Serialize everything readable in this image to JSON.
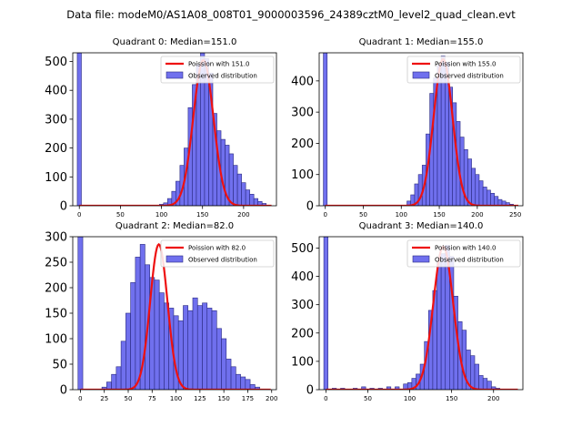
{
  "figure": {
    "suptitle": "Data file: modeM0/AS1A08_008T01_9000003596_24389cztM0_level2_quad_clean.evt"
  },
  "colors": {
    "bar_fill": "#7070ee",
    "bar_edge": "#2a2a80",
    "poisson_line": "#ee1111"
  },
  "chart_data": [
    {
      "type": "bar",
      "title": "Quadrant 0: Median=151.0",
      "xlim": [
        -8,
        240
      ],
      "ylim": [
        0,
        530
      ],
      "xticks": [
        0,
        50,
        100,
        150,
        200
      ],
      "yticks": [
        0,
        100,
        200,
        300,
        400,
        500
      ],
      "legend": [
        "Poission with 151.0",
        "Observed distribution"
      ],
      "bin_width": 5,
      "bars": [
        [
          0,
          530
        ],
        [
          100,
          5
        ],
        [
          105,
          10
        ],
        [
          110,
          25
        ],
        [
          115,
          50
        ],
        [
          120,
          85
        ],
        [
          125,
          140
        ],
        [
          130,
          200
        ],
        [
          135,
          340
        ],
        [
          140,
          420
        ],
        [
          145,
          490
        ],
        [
          150,
          530
        ],
        [
          155,
          510
        ],
        [
          160,
          460
        ],
        [
          165,
          320
        ],
        [
          170,
          260
        ],
        [
          175,
          230
        ],
        [
          180,
          210
        ],
        [
          185,
          180
        ],
        [
          190,
          140
        ],
        [
          195,
          110
        ],
        [
          200,
          80
        ],
        [
          205,
          55
        ],
        [
          210,
          40
        ],
        [
          215,
          25
        ],
        [
          220,
          15
        ],
        [
          225,
          8
        ]
      ],
      "poisson": {
        "mean": 151.0,
        "peak": 505
      }
    },
    {
      "type": "bar",
      "title": "Quadrant 1: Median=155.0",
      "xlim": [
        -8,
        260
      ],
      "ylim": [
        0,
        490
      ],
      "xticks": [
        0,
        50,
        100,
        150,
        200,
        250
      ],
      "yticks": [
        0,
        100,
        200,
        300,
        400
      ],
      "legend": [
        "Poission with 155.0",
        "Observed distribution"
      ],
      "bin_width": 5,
      "bars": [
        [
          0,
          490
        ],
        [
          110,
          15
        ],
        [
          115,
          35
        ],
        [
          120,
          70
        ],
        [
          125,
          100
        ],
        [
          130,
          130
        ],
        [
          135,
          230
        ],
        [
          140,
          360
        ],
        [
          145,
          410
        ],
        [
          150,
          450
        ],
        [
          155,
          480
        ],
        [
          160,
          460
        ],
        [
          165,
          380
        ],
        [
          170,
          330
        ],
        [
          175,
          270
        ],
        [
          180,
          220
        ],
        [
          185,
          180
        ],
        [
          190,
          150
        ],
        [
          195,
          120
        ],
        [
          200,
          100
        ],
        [
          205,
          80
        ],
        [
          210,
          60
        ],
        [
          215,
          50
        ],
        [
          220,
          40
        ],
        [
          225,
          30
        ],
        [
          230,
          20
        ],
        [
          235,
          15
        ],
        [
          240,
          10
        ],
        [
          245,
          5
        ]
      ],
      "poisson": {
        "mean": 155.0,
        "peak": 470
      }
    },
    {
      "type": "bar",
      "title": "Quadrant 2: Median=82.0",
      "xlim": [
        -8,
        205
      ],
      "ylim": [
        0,
        300
      ],
      "xticks": [
        0,
        25,
        50,
        75,
        100,
        125,
        150,
        175,
        200
      ],
      "yticks": [
        0,
        50,
        100,
        150,
        200,
        250,
        300
      ],
      "legend": [
        "Poission with 82.0",
        "Observed distribution"
      ],
      "bin_width": 5,
      "bars": [
        [
          0,
          300
        ],
        [
          25,
          5
        ],
        [
          30,
          15
        ],
        [
          35,
          30
        ],
        [
          40,
          45
        ],
        [
          45,
          95
        ],
        [
          50,
          150
        ],
        [
          55,
          210
        ],
        [
          60,
          260
        ],
        [
          65,
          285
        ],
        [
          70,
          245
        ],
        [
          75,
          220
        ],
        [
          80,
          215
        ],
        [
          85,
          190
        ],
        [
          90,
          170
        ],
        [
          95,
          160
        ],
        [
          100,
          145
        ],
        [
          105,
          135
        ],
        [
          110,
          165
        ],
        [
          115,
          155
        ],
        [
          120,
          180
        ],
        [
          125,
          165
        ],
        [
          130,
          170
        ],
        [
          135,
          160
        ],
        [
          140,
          155
        ],
        [
          145,
          120
        ],
        [
          150,
          100
        ],
        [
          155,
          60
        ],
        [
          160,
          45
        ],
        [
          165,
          30
        ],
        [
          170,
          25
        ],
        [
          175,
          20
        ],
        [
          180,
          10
        ],
        [
          185,
          5
        ]
      ],
      "poisson": {
        "mean": 82.0,
        "peak": 285
      }
    },
    {
      "type": "bar",
      "title": "Quadrant 3: Median=140.0",
      "xlim": [
        -8,
        235
      ],
      "ylim": [
        0,
        540
      ],
      "xticks": [
        0,
        50,
        100,
        150,
        200
      ],
      "yticks": [
        0,
        100,
        200,
        300,
        400,
        500
      ],
      "legend": [
        "Poission with 140.0",
        "Observed distribution"
      ],
      "bin_width": 5,
      "bars": [
        [
          0,
          540
        ],
        [
          10,
          5
        ],
        [
          20,
          5
        ],
        [
          35,
          5
        ],
        [
          45,
          10
        ],
        [
          55,
          5
        ],
        [
          65,
          5
        ],
        [
          75,
          10
        ],
        [
          85,
          10
        ],
        [
          95,
          20
        ],
        [
          100,
          25
        ],
        [
          105,
          40
        ],
        [
          110,
          55
        ],
        [
          115,
          90
        ],
        [
          120,
          170
        ],
        [
          125,
          280
        ],
        [
          130,
          350
        ],
        [
          135,
          450
        ],
        [
          140,
          480
        ],
        [
          145,
          510
        ],
        [
          150,
          470
        ],
        [
          155,
          330
        ],
        [
          160,
          240
        ],
        [
          165,
          210
        ],
        [
          170,
          140
        ],
        [
          175,
          120
        ],
        [
          180,
          90
        ],
        [
          185,
          50
        ],
        [
          190,
          40
        ],
        [
          195,
          30
        ],
        [
          200,
          10
        ],
        [
          205,
          5
        ]
      ],
      "poisson": {
        "mean": 140.0,
        "peak": 505
      }
    }
  ]
}
